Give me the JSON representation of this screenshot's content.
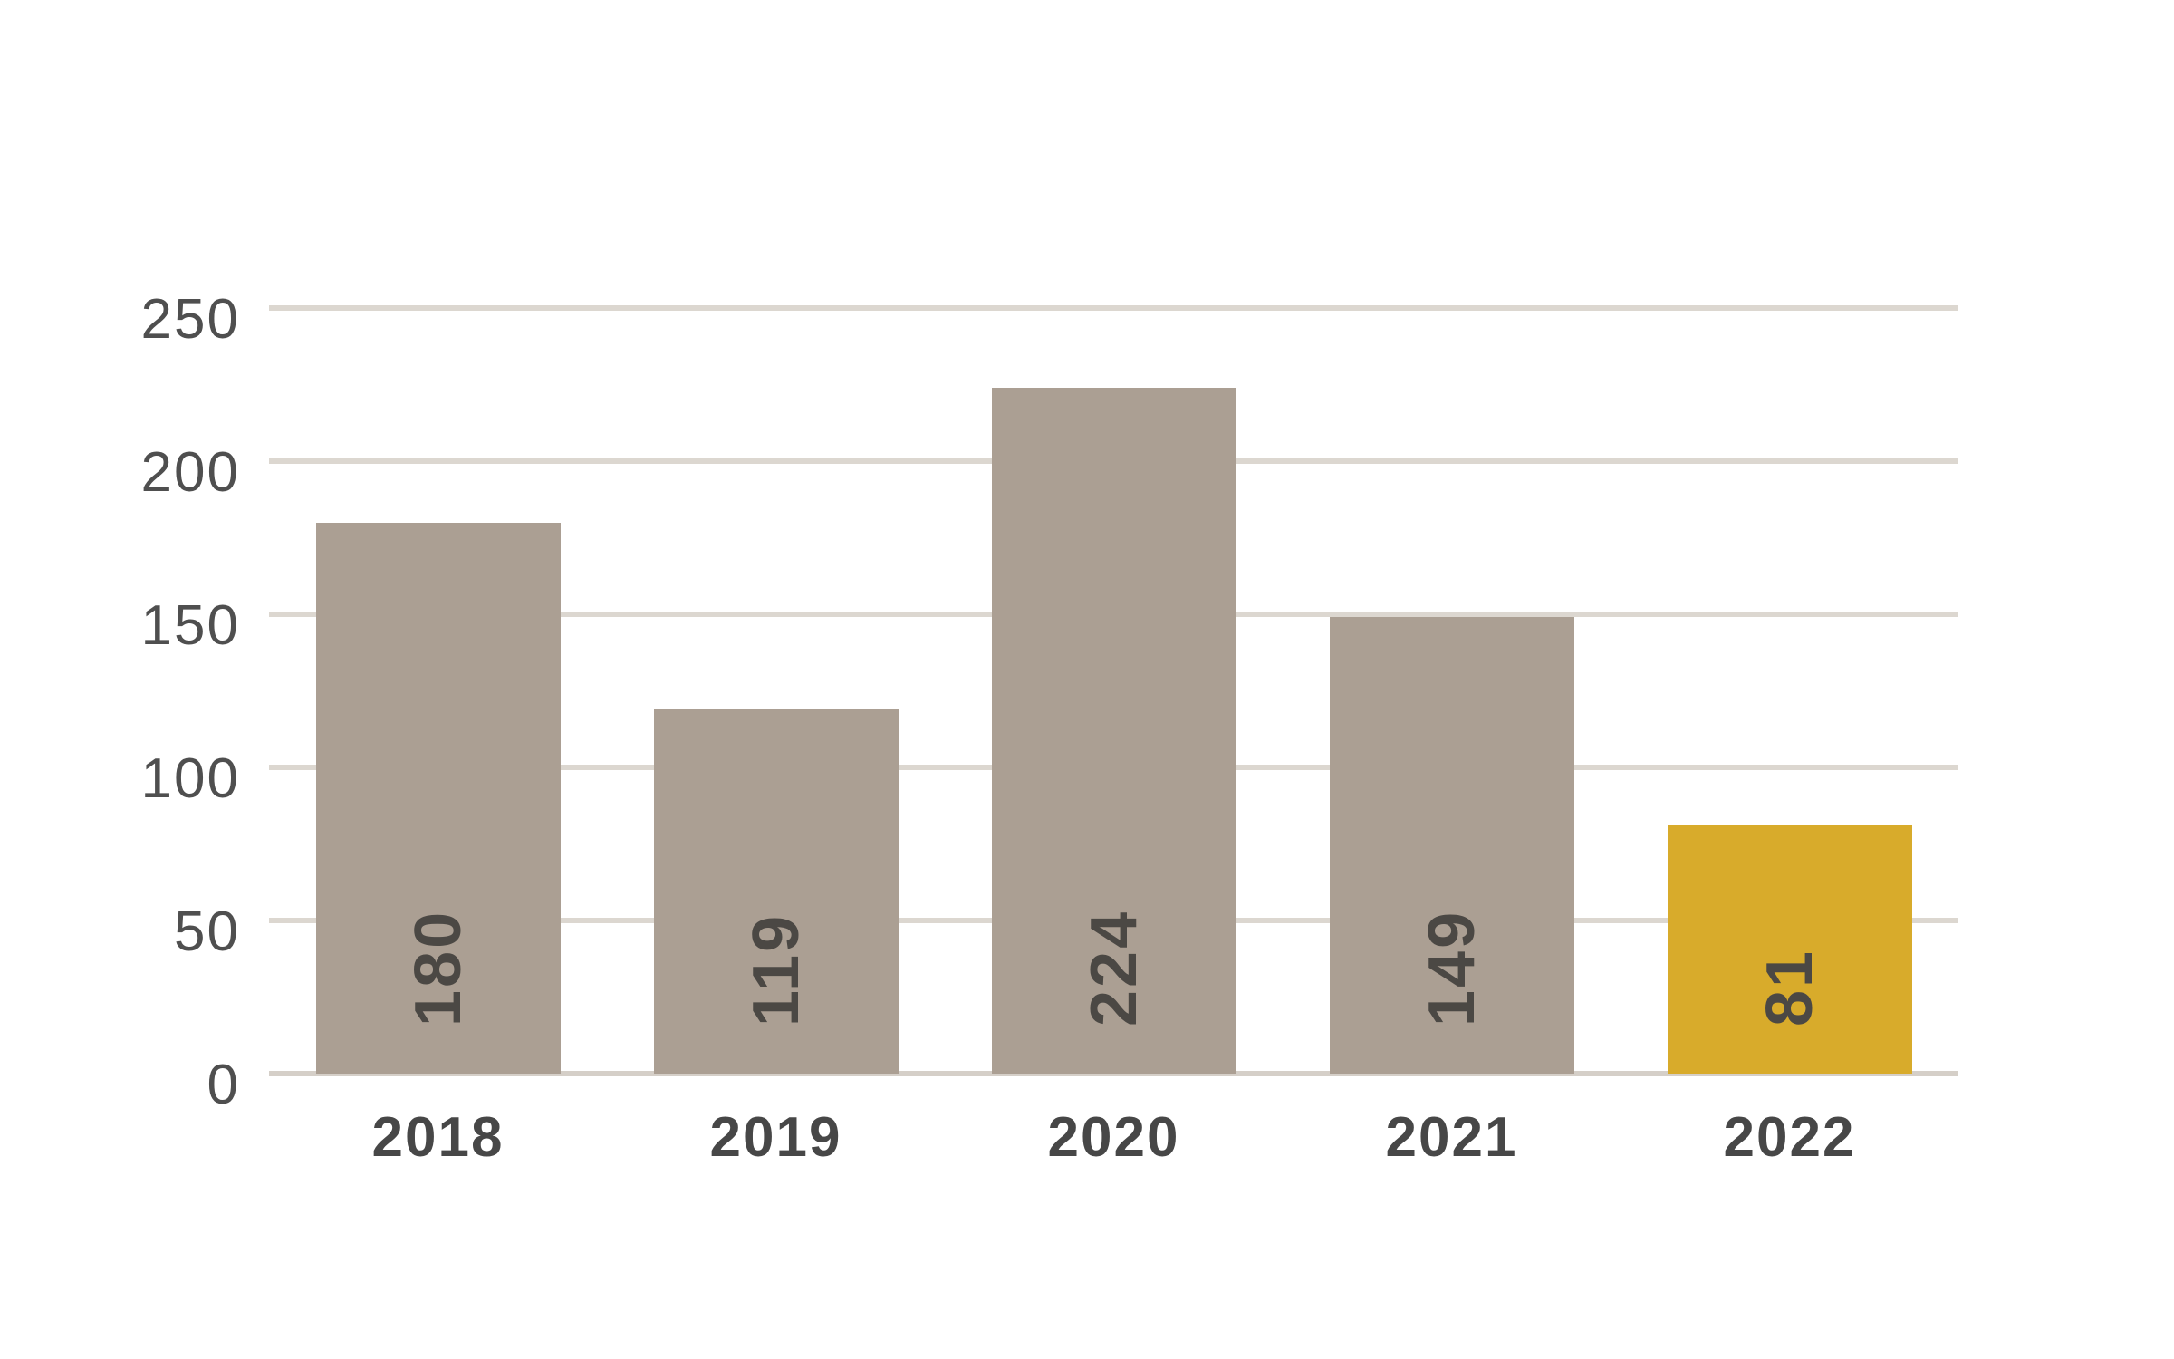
{
  "page": {
    "background_color": "#ffffff"
  },
  "chart_data": {
    "type": "bar",
    "title": "",
    "xlabel": "",
    "ylabel": "",
    "categories": [
      "2018",
      "2019",
      "2020",
      "2021",
      "2022"
    ],
    "values": [
      180,
      119,
      224,
      149,
      81
    ],
    "value_labels": [
      "180",
      "119",
      "224",
      "149",
      "81"
    ],
    "value_label_rotation_deg": -90,
    "yticks": [
      0,
      50,
      100,
      150,
      200,
      250
    ],
    "ytick_labels": [
      "0",
      "50",
      "100",
      "150",
      "200",
      "250"
    ],
    "ylim": [
      0,
      250
    ],
    "grid": "horizontal",
    "legend_position": "none",
    "highlight_index": 4,
    "colors": {
      "bar_default": "#ab9f93",
      "bar_highlight": "#d8ab2b",
      "gridline": "#dcd7d0",
      "axis_baseline": "#d5cfc8",
      "ytick_text": "#4f4f4f",
      "xtick_text": "#474747",
      "value_label_text": "#4b4844"
    }
  }
}
